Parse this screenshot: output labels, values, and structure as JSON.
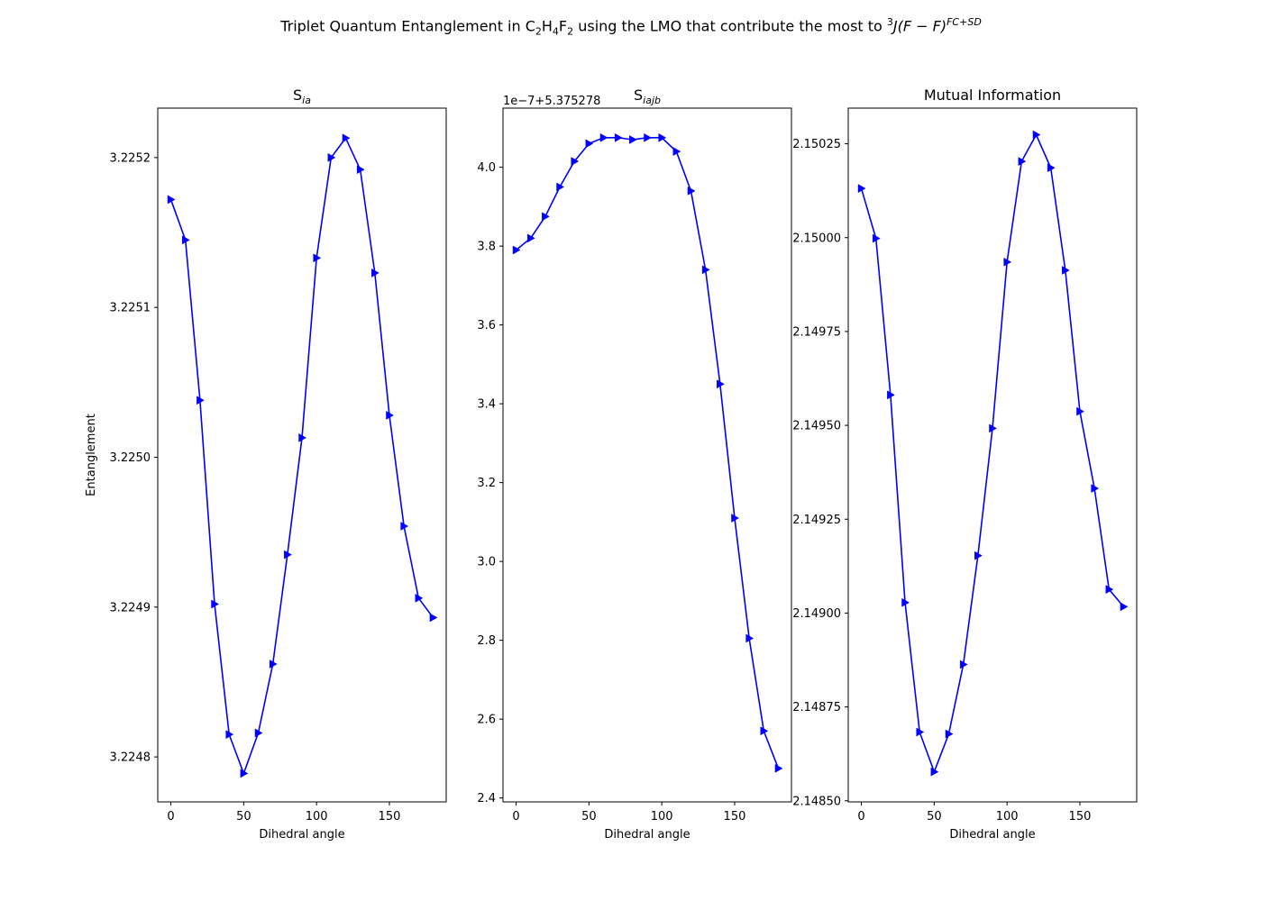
{
  "figure": {
    "title_parts": {
      "t1": "Triplet Quantum Entanglement in C",
      "s1": "2",
      "t2": "H",
      "s2": "4",
      "t3": "F",
      "s3": "2",
      "t4": " using the LMO that contribute the most to ",
      "sup1": "3",
      "t5": "J(F − F)",
      "sup2": "FC+SD"
    }
  },
  "colors": {
    "series": "#0000ff",
    "axis": "#000000",
    "background": "#ffffff"
  },
  "chart_data": [
    {
      "type": "line",
      "title_base": "S",
      "title_sub": "ia",
      "xlabel": "Dihedral angle",
      "ylabel": "Entanglement",
      "marker": "triangle-right",
      "xlim": [
        -9,
        189
      ],
      "ylim": [
        3.22477,
        3.225233
      ],
      "xticks": [
        0,
        50,
        100,
        150
      ],
      "yticks": [
        3.2248,
        3.2249,
        3.225,
        3.2251,
        3.2252
      ],
      "ytick_labels": [
        "3.2248",
        "3.2249",
        "3.2250",
        "3.2251",
        "3.2252"
      ],
      "offset_text": "",
      "x": [
        0,
        10,
        20,
        30,
        40,
        50,
        60,
        70,
        80,
        90,
        100,
        110,
        120,
        130,
        140,
        150,
        160,
        170,
        180
      ],
      "y": [
        3.225172,
        3.225145,
        3.225038,
        3.224902,
        3.224815,
        3.224789,
        3.224816,
        3.224862,
        3.224935,
        3.225013,
        3.225133,
        3.2252,
        3.225213,
        3.225192,
        3.225123,
        3.225028,
        3.224954,
        3.224906,
        3.224893
      ]
    },
    {
      "type": "line",
      "title_base": "S",
      "title_sub": "iajb",
      "xlabel": "Dihedral angle",
      "ylabel": "",
      "marker": "triangle-right",
      "xlim": [
        -9,
        189
      ],
      "ylim": [
        2.39,
        4.15
      ],
      "xticks": [
        0,
        50,
        100,
        150
      ],
      "yticks": [
        2.4,
        2.6,
        2.8,
        3.0,
        3.2,
        3.4,
        3.6,
        3.8,
        4.0
      ],
      "ytick_labels": [
        "2.4",
        "2.6",
        "2.8",
        "3.0",
        "3.2",
        "3.4",
        "3.6",
        "3.8",
        "4.0"
      ],
      "offset_text": "1e−7+5.375278",
      "x": [
        0,
        10,
        20,
        30,
        40,
        50,
        60,
        70,
        80,
        90,
        100,
        110,
        120,
        130,
        140,
        150,
        160,
        170,
        180
      ],
      "y": [
        3.79,
        3.82,
        3.875,
        3.95,
        4.015,
        4.06,
        4.075,
        4.075,
        4.07,
        4.075,
        4.075,
        4.04,
        3.94,
        3.74,
        3.45,
        3.11,
        2.805,
        2.57,
        2.475
      ]
    },
    {
      "type": "line",
      "title_base": "Mutual Information",
      "title_sub": "",
      "xlabel": "Dihedral angle",
      "ylabel": "",
      "marker": "triangle-right",
      "xlim": [
        -9,
        189
      ],
      "ylim": [
        2.148497,
        2.150345
      ],
      "xticks": [
        0,
        50,
        100,
        150
      ],
      "yticks": [
        2.1485,
        2.14875,
        2.149,
        2.14925,
        2.1495,
        2.14975,
        2.15,
        2.15025
      ],
      "ytick_labels": [
        "2.14850",
        "2.14875",
        "2.14900",
        "2.14925",
        "2.14950",
        "2.14975",
        "2.15000",
        "2.15025"
      ],
      "offset_text": "",
      "x": [
        0,
        10,
        20,
        30,
        40,
        50,
        60,
        70,
        80,
        90,
        100,
        110,
        120,
        130,
        140,
        150,
        160,
        170,
        180
      ],
      "y": [
        2.150131,
        2.149998,
        2.149581,
        2.149028,
        2.148683,
        2.148577,
        2.148678,
        2.148863,
        2.149153,
        2.149492,
        2.149935,
        2.150203,
        2.150274,
        2.150186,
        2.149913,
        2.149537,
        2.149332,
        2.149063,
        2.149017
      ]
    }
  ]
}
